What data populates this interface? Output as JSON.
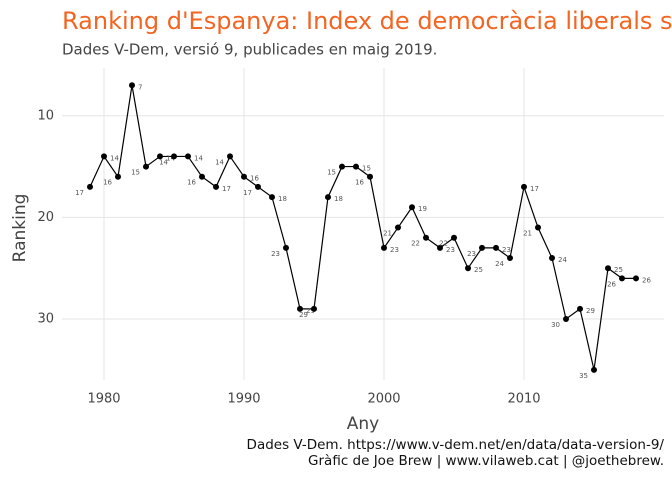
{
  "chart_data": {
    "type": "line",
    "title": "Ranking d'Espanya: Index de democràcia liberals segons V-Dem",
    "subtitle": "Dades V-Dem, versió 9, publicades en maig 2019.",
    "x_label": "Any",
    "y_label": "Ranking",
    "caption": [
      "Dades V-Dem. https://www.v-dem.net/en/data/data-version-9/",
      "Gràfic de Joe Brew | www.vilaweb.cat | @joethebrew."
    ],
    "x": [
      1979,
      1980,
      1981,
      1982,
      1983,
      1984,
      1985,
      1986,
      1987,
      1988,
      1989,
      1990,
      1991,
      1992,
      1993,
      1994,
      1995,
      1996,
      1997,
      1998,
      1999,
      2000,
      2001,
      2002,
      2003,
      2004,
      2005,
      2006,
      2007,
      2008,
      2009,
      2010,
      2011,
      2012,
      2013,
      2014,
      2015,
      2016,
      2017,
      2018
    ],
    "series": [
      {
        "name": "Espanya",
        "color": "#000000",
        "values": [
          17,
          14,
          16,
          7,
          15,
          14,
          14,
          14,
          16,
          17,
          14,
          16,
          17,
          18,
          23,
          29,
          29,
          18,
          15,
          15,
          16,
          23,
          21,
          19,
          22,
          23,
          22,
          25,
          23,
          23,
          24,
          17,
          21,
          24,
          30,
          29,
          35,
          25,
          26,
          26
        ]
      }
    ],
    "xlim": [
      1977,
      2020
    ],
    "xticks": [
      1980,
      1990,
      2000,
      2010
    ],
    "ylim": [
      5.3,
      36
    ],
    "yticks": [
      10,
      20,
      30
    ],
    "y_reversed": true,
    "grid": true
  }
}
